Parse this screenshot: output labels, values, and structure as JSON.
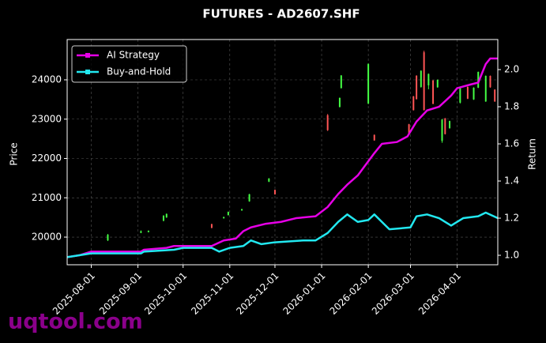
{
  "chart_data": {
    "type": "combo",
    "title": "FUTURES - AD2607.SHF",
    "ylabel": "Price",
    "y2label": "Return",
    "watermark": "uqtool.com",
    "grid": true,
    "legend": "upper left",
    "xlim": [
      "2025-07-16",
      "2026-04-28"
    ],
    "xticks": [
      "2025-08-01",
      "2025-09-01",
      "2025-10-01",
      "2025-11-01",
      "2025-12-01",
      "2026-01-01",
      "2026-02-01",
      "2026-03-01",
      "2026-04-01"
    ],
    "ylim": [
      19297,
      25025
    ],
    "yticks": [
      20000,
      21000,
      22000,
      23000,
      24000
    ],
    "y2lim": [
      0.949,
      2.162
    ],
    "y2ticks": [
      {
        "value": 1,
        "label": "1.0"
      },
      1.2,
      1.4,
      1.6,
      1.8,
      {
        "value": 2,
        "label": "2.0"
      }
    ],
    "candles": {
      "type": "candlestick",
      "up_color": "#44ff44",
      "down_color": "#ff5555",
      "x": [
        "2025-08-12",
        "2025-09-03",
        "2025-09-08",
        "2025-09-18",
        "2025-09-20",
        "2025-10-20",
        "2025-10-28",
        "2025-10-31",
        "2025-11-09",
        "2025-11-14",
        "2025-11-27",
        "2025-12-01",
        "2026-01-05",
        "2026-01-13",
        "2026-01-14",
        "2026-02-01",
        "2026-02-05",
        "2026-02-28",
        "2026-03-03",
        "2026-03-05",
        "2026-03-08",
        "2026-03-10",
        "2026-03-13",
        "2026-03-16",
        "2026-03-19",
        "2026-03-22",
        "2026-03-24",
        "2026-03-27",
        "2026-04-03",
        "2026-04-08",
        "2026-04-12",
        "2026-04-15",
        "2026-04-20",
        "2026-04-23",
        "2026-04-26"
      ],
      "open": [
        19920,
        20110,
        20130,
        20420,
        20500,
        20330,
        20480,
        20560,
        20680,
        20910,
        21410,
        21200,
        23100,
        23310,
        23790,
        23400,
        22600,
        22870,
        23580,
        24100,
        23820,
        24700,
        23860,
        23980,
        23810,
        22450,
        23020,
        22770,
        23420,
        23820,
        23500,
        23800,
        23450,
        24100,
        23750
      ],
      "high": [
        20080,
        20170,
        20170,
        20560,
        20600,
        20340,
        20520,
        20650,
        20720,
        21100,
        21500,
        21210,
        23130,
        23550,
        24120,
        24420,
        22610,
        22880,
        23590,
        24120,
        24240,
        24740,
        24160,
        24000,
        24010,
        23000,
        23030,
        22960,
        23810,
        23830,
        23810,
        24210,
        24110,
        24110,
        23760
      ],
      "low": [
        19900,
        20100,
        20120,
        20400,
        20490,
        20220,
        20470,
        20550,
        20670,
        20900,
        21400,
        21080,
        22700,
        23300,
        23780,
        23380,
        22450,
        22600,
        23220,
        23500,
        23800,
        23220,
        23760,
        23380,
        23800,
        22400,
        22610,
        22760,
        23400,
        23510,
        23490,
        23790,
        23440,
        23800,
        23440
      ],
      "close": [
        20060,
        20150,
        20160,
        20540,
        20590,
        20240,
        20510,
        20640,
        20710,
        21090,
        21490,
        21090,
        22720,
        23540,
        24110,
        24400,
        22460,
        22610,
        23230,
        23510,
        24230,
        23230,
        24150,
        23390,
        24000,
        22990,
        22620,
        22950,
        23800,
        23520,
        23800,
        24200,
        24100,
        23810,
        23450
      ]
    },
    "series": [
      {
        "name": "AI Strategy",
        "color": "#e600e6",
        "axis": "y2",
        "x": [
          "2025-07-16",
          "2025-07-24",
          "2025-08-01",
          "2025-09-03",
          "2025-09-05",
          "2025-09-20",
          "2025-09-25",
          "2025-10-01",
          "2025-10-20",
          "2025-10-28",
          "2025-11-05",
          "2025-11-10",
          "2025-11-15",
          "2025-11-25",
          "2025-12-05",
          "2025-12-15",
          "2025-12-28",
          "2026-01-05",
          "2026-01-12",
          "2026-01-18",
          "2026-01-25",
          "2026-02-05",
          "2026-02-10",
          "2026-02-20",
          "2026-02-27",
          "2026-03-05",
          "2026-03-12",
          "2026-03-20",
          "2026-03-28",
          "2026-04-01",
          "2026-04-10",
          "2026-04-15",
          "2026-04-20",
          "2026-04-23",
          "2026-04-28"
        ],
        "values": [
          0.99,
          1.0,
          1.02,
          1.02,
          1.03,
          1.04,
          1.05,
          1.05,
          1.05,
          1.08,
          1.09,
          1.13,
          1.15,
          1.17,
          1.18,
          1.2,
          1.21,
          1.26,
          1.33,
          1.38,
          1.43,
          1.55,
          1.6,
          1.61,
          1.64,
          1.72,
          1.78,
          1.8,
          1.86,
          1.9,
          1.92,
          1.93,
          2.03,
          2.06,
          2.06
        ]
      },
      {
        "name": "Buy-and-Hold",
        "color": "#22e8f0",
        "axis": "y2",
        "x": [
          "2025-07-16",
          "2025-08-01",
          "2025-09-03",
          "2025-09-05",
          "2025-09-25",
          "2025-10-01",
          "2025-10-20",
          "2025-10-25",
          "2025-11-01",
          "2025-11-10",
          "2025-11-15",
          "2025-11-22",
          "2025-12-01",
          "2025-12-20",
          "2025-12-28",
          "2026-01-05",
          "2026-01-12",
          "2026-01-18",
          "2026-01-25",
          "2026-02-01",
          "2026-02-05",
          "2026-02-10",
          "2026-02-15",
          "2026-03-01",
          "2026-03-05",
          "2026-03-12",
          "2026-03-20",
          "2026-03-28",
          "2026-04-05",
          "2026-04-15",
          "2026-04-20",
          "2026-04-28"
        ],
        "values": [
          0.99,
          1.01,
          1.01,
          1.02,
          1.03,
          1.04,
          1.04,
          1.02,
          1.04,
          1.05,
          1.08,
          1.06,
          1.07,
          1.08,
          1.08,
          1.12,
          1.18,
          1.22,
          1.18,
          1.19,
          1.22,
          1.18,
          1.14,
          1.15,
          1.21,
          1.22,
          1.2,
          1.16,
          1.2,
          1.21,
          1.23,
          1.2
        ]
      }
    ]
  }
}
